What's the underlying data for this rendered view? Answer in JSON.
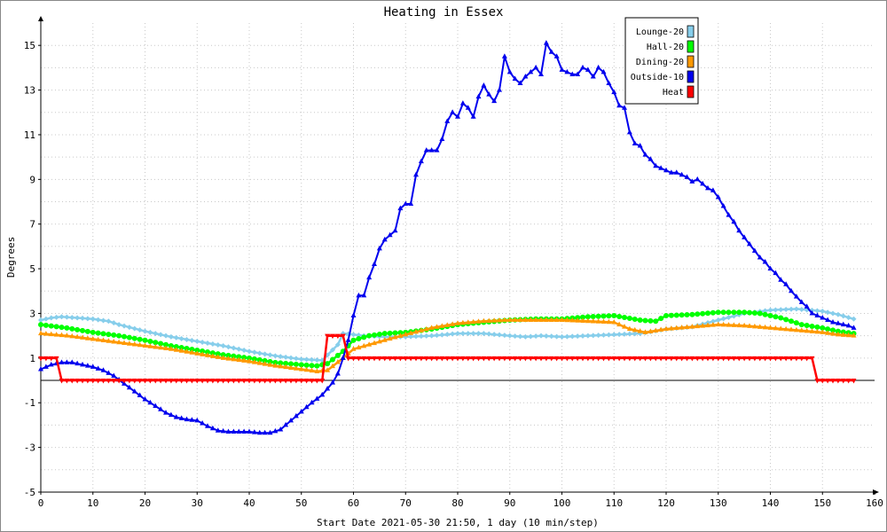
{
  "chart_data": {
    "type": "line",
    "title": "Heating in Essex",
    "xlabel": "Start Date 2021-05-30 21:50, 1 day (10 min/step)",
    "ylabel": "Degrees",
    "xlim": [
      0,
      160
    ],
    "ylim": [
      -5,
      16
    ],
    "x_ticks": [
      0,
      10,
      20,
      30,
      40,
      50,
      60,
      70,
      80,
      90,
      100,
      110,
      120,
      130,
      140,
      150,
      160
    ],
    "y_ticks": [
      -5,
      -3,
      -1,
      1,
      3,
      5,
      7,
      9,
      11,
      13,
      15
    ],
    "grid": true,
    "legend_position": "top-right",
    "reference_line": 0,
    "series": [
      {
        "name": "Lounge-20",
        "color": "#87ceeb",
        "marker": "diamond",
        "points": [
          [
            0,
            2.7
          ],
          [
            2,
            2.8
          ],
          [
            4,
            2.85
          ],
          [
            7,
            2.8
          ],
          [
            10,
            2.75
          ],
          [
            13,
            2.65
          ],
          [
            15,
            2.5
          ],
          [
            20,
            2.2
          ],
          [
            25,
            1.95
          ],
          [
            30,
            1.75
          ],
          [
            35,
            1.55
          ],
          [
            40,
            1.3
          ],
          [
            45,
            1.1
          ],
          [
            50,
            0.95
          ],
          [
            54,
            0.9
          ],
          [
            57,
            1.6
          ],
          [
            58,
            2.1
          ],
          [
            62,
            2.0
          ],
          [
            66,
            1.95
          ],
          [
            70,
            1.95
          ],
          [
            75,
            2.0
          ],
          [
            80,
            2.1
          ],
          [
            85,
            2.1
          ],
          [
            90,
            2.0
          ],
          [
            93,
            1.95
          ],
          [
            96,
            2.0
          ],
          [
            100,
            1.95
          ],
          [
            105,
            2.0
          ],
          [
            110,
            2.05
          ],
          [
            115,
            2.1
          ],
          [
            120,
            2.3
          ],
          [
            125,
            2.4
          ],
          [
            130,
            2.7
          ],
          [
            135,
            3.0
          ],
          [
            140,
            3.15
          ],
          [
            145,
            3.2
          ],
          [
            150,
            3.1
          ],
          [
            153,
            2.95
          ],
          [
            156,
            2.75
          ]
        ]
      },
      {
        "name": "Hall-20",
        "color": "#00ff00",
        "marker": "circle",
        "points": [
          [
            0,
            2.5
          ],
          [
            5,
            2.35
          ],
          [
            10,
            2.15
          ],
          [
            15,
            2.0
          ],
          [
            20,
            1.8
          ],
          [
            25,
            1.55
          ],
          [
            30,
            1.35
          ],
          [
            35,
            1.15
          ],
          [
            40,
            1.0
          ],
          [
            45,
            0.8
          ],
          [
            50,
            0.7
          ],
          [
            53,
            0.65
          ],
          [
            55,
            0.75
          ],
          [
            58,
            1.3
          ],
          [
            60,
            1.8
          ],
          [
            63,
            2.0
          ],
          [
            66,
            2.1
          ],
          [
            70,
            2.15
          ],
          [
            75,
            2.3
          ],
          [
            80,
            2.5
          ],
          [
            85,
            2.6
          ],
          [
            90,
            2.7
          ],
          [
            95,
            2.75
          ],
          [
            100,
            2.75
          ],
          [
            105,
            2.85
          ],
          [
            110,
            2.9
          ],
          [
            115,
            2.7
          ],
          [
            118,
            2.65
          ],
          [
            120,
            2.9
          ],
          [
            125,
            2.95
          ],
          [
            130,
            3.05
          ],
          [
            135,
            3.05
          ],
          [
            138,
            3.0
          ],
          [
            142,
            2.8
          ],
          [
            146,
            2.5
          ],
          [
            150,
            2.35
          ],
          [
            153,
            2.2
          ],
          [
            156,
            2.1
          ]
        ]
      },
      {
        "name": "Dining-20",
        "color": "#ff9900",
        "marker": "triangle",
        "points": [
          [
            0,
            2.1
          ],
          [
            5,
            2.0
          ],
          [
            10,
            1.85
          ],
          [
            15,
            1.7
          ],
          [
            20,
            1.55
          ],
          [
            25,
            1.4
          ],
          [
            30,
            1.2
          ],
          [
            35,
            1.0
          ],
          [
            40,
            0.85
          ],
          [
            45,
            0.65
          ],
          [
            50,
            0.5
          ],
          [
            53,
            0.4
          ],
          [
            55,
            0.45
          ],
          [
            58,
            1.0
          ],
          [
            60,
            1.4
          ],
          [
            63,
            1.6
          ],
          [
            66,
            1.8
          ],
          [
            70,
            2.05
          ],
          [
            75,
            2.35
          ],
          [
            80,
            2.55
          ],
          [
            85,
            2.65
          ],
          [
            90,
            2.7
          ],
          [
            95,
            2.7
          ],
          [
            100,
            2.7
          ],
          [
            105,
            2.65
          ],
          [
            110,
            2.6
          ],
          [
            113,
            2.3
          ],
          [
            116,
            2.15
          ],
          [
            120,
            2.3
          ],
          [
            125,
            2.4
          ],
          [
            130,
            2.5
          ],
          [
            135,
            2.45
          ],
          [
            140,
            2.35
          ],
          [
            145,
            2.25
          ],
          [
            150,
            2.15
          ],
          [
            153,
            2.05
          ],
          [
            156,
            2.0
          ]
        ]
      },
      {
        "name": "Outside-10",
        "color": "#0000ee",
        "marker": "triangle",
        "points": [
          [
            0,
            0.5
          ],
          [
            2,
            0.7
          ],
          [
            4,
            0.8
          ],
          [
            6,
            0.8
          ],
          [
            8,
            0.7
          ],
          [
            10,
            0.6
          ],
          [
            12,
            0.45
          ],
          [
            14,
            0.2
          ],
          [
            16,
            -0.15
          ],
          [
            18,
            -0.5
          ],
          [
            20,
            -0.85
          ],
          [
            22,
            -1.15
          ],
          [
            24,
            -1.45
          ],
          [
            26,
            -1.65
          ],
          [
            28,
            -1.75
          ],
          [
            30,
            -1.8
          ],
          [
            32,
            -2.05
          ],
          [
            34,
            -2.25
          ],
          [
            36,
            -2.3
          ],
          [
            38,
            -2.3
          ],
          [
            40,
            -2.3
          ],
          [
            42,
            -2.35
          ],
          [
            44,
            -2.35
          ],
          [
            46,
            -2.2
          ],
          [
            48,
            -1.8
          ],
          [
            50,
            -1.4
          ],
          [
            52,
            -1.0
          ],
          [
            54,
            -0.65
          ],
          [
            56,
            -0.1
          ],
          [
            57,
            0.3
          ],
          [
            58,
            1.0
          ],
          [
            59,
            1.8
          ],
          [
            60,
            2.9
          ],
          [
            61,
            3.8
          ],
          [
            62,
            3.8
          ],
          [
            63,
            4.6
          ],
          [
            64,
            5.2
          ],
          [
            65,
            5.9
          ],
          [
            66,
            6.3
          ],
          [
            67,
            6.5
          ],
          [
            68,
            6.7
          ],
          [
            69,
            7.7
          ],
          [
            70,
            7.9
          ],
          [
            71,
            7.9
          ],
          [
            72,
            9.2
          ],
          [
            73,
            9.8
          ],
          [
            74,
            10.3
          ],
          [
            75,
            10.3
          ],
          [
            76,
            10.3
          ],
          [
            77,
            10.8
          ],
          [
            78,
            11.6
          ],
          [
            79,
            12.0
          ],
          [
            80,
            11.8
          ],
          [
            81,
            12.4
          ],
          [
            82,
            12.2
          ],
          [
            83,
            11.8
          ],
          [
            84,
            12.7
          ],
          [
            85,
            13.2
          ],
          [
            86,
            12.8
          ],
          [
            87,
            12.5
          ],
          [
            88,
            13.0
          ],
          [
            89,
            14.5
          ],
          [
            90,
            13.8
          ],
          [
            91,
            13.5
          ],
          [
            92,
            13.3
          ],
          [
            93,
            13.6
          ],
          [
            94,
            13.8
          ],
          [
            95,
            14.0
          ],
          [
            96,
            13.7
          ],
          [
            97,
            15.1
          ],
          [
            98,
            14.7
          ],
          [
            99,
            14.5
          ],
          [
            100,
            13.9
          ],
          [
            101,
            13.8
          ],
          [
            102,
            13.7
          ],
          [
            103,
            13.7
          ],
          [
            104,
            14.0
          ],
          [
            105,
            13.9
          ],
          [
            106,
            13.6
          ],
          [
            107,
            14.0
          ],
          [
            108,
            13.8
          ],
          [
            109,
            13.3
          ],
          [
            110,
            12.9
          ],
          [
            111,
            12.3
          ],
          [
            112,
            12.2
          ],
          [
            113,
            11.1
          ],
          [
            114,
            10.6
          ],
          [
            115,
            10.5
          ],
          [
            116,
            10.1
          ],
          [
            117,
            9.9
          ],
          [
            118,
            9.6
          ],
          [
            119,
            9.5
          ],
          [
            120,
            9.4
          ],
          [
            121,
            9.3
          ],
          [
            122,
            9.3
          ],
          [
            123,
            9.2
          ],
          [
            124,
            9.1
          ],
          [
            125,
            8.9
          ],
          [
            126,
            9.0
          ],
          [
            127,
            8.8
          ],
          [
            128,
            8.6
          ],
          [
            129,
            8.5
          ],
          [
            130,
            8.2
          ],
          [
            131,
            7.8
          ],
          [
            132,
            7.4
          ],
          [
            133,
            7.1
          ],
          [
            134,
            6.7
          ],
          [
            135,
            6.4
          ],
          [
            136,
            6.1
          ],
          [
            137,
            5.8
          ],
          [
            138,
            5.5
          ],
          [
            139,
            5.3
          ],
          [
            140,
            5.0
          ],
          [
            141,
            4.8
          ],
          [
            142,
            4.5
          ],
          [
            143,
            4.3
          ],
          [
            144,
            4.0
          ],
          [
            145,
            3.75
          ],
          [
            146,
            3.5
          ],
          [
            147,
            3.3
          ],
          [
            148,
            3.0
          ],
          [
            149,
            2.9
          ],
          [
            150,
            2.8
          ],
          [
            151,
            2.7
          ],
          [
            152,
            2.6
          ],
          [
            153,
            2.55
          ],
          [
            154,
            2.5
          ],
          [
            155,
            2.45
          ],
          [
            156,
            2.35
          ]
        ]
      },
      {
        "name": "Heat",
        "color": "#ff0000",
        "marker": "triangle-down",
        "points": [
          [
            0,
            1
          ],
          [
            3,
            1
          ],
          [
            4,
            0
          ],
          [
            54,
            0
          ],
          [
            55,
            2
          ],
          [
            58,
            2
          ],
          [
            59,
            1
          ],
          [
            148,
            1
          ],
          [
            149,
            0
          ],
          [
            156,
            0
          ]
        ]
      }
    ]
  }
}
